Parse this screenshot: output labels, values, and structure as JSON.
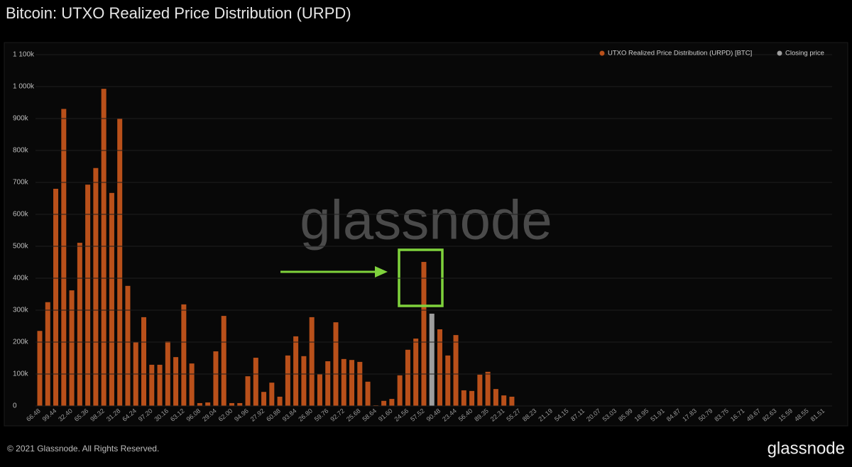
{
  "chart_data": {
    "type": "bar",
    "title": "Bitcoin: UTXO Realized Price Distribution (URPD)",
    "watermark": "glassnode",
    "footer": "© 2021 Glassnode. All Rights Reserved.",
    "logo": "glassnode",
    "grid": true,
    "categories": [
      "66.48",
      null,
      "99.44",
      null,
      "32.40",
      null,
      "65.36",
      null,
      "98.32",
      null,
      "31.28",
      null,
      "64.24",
      null,
      "97.20",
      null,
      "30.16",
      null,
      "63.12",
      null,
      "96.08",
      null,
      "29.04",
      null,
      "62.00",
      null,
      "94.96",
      null,
      "27.92",
      null,
      "60.88",
      null,
      "93.84",
      null,
      "26.80",
      null,
      "59.76",
      null,
      "92.72",
      null,
      "25.68",
      null,
      "58.64",
      null,
      "91.60",
      null,
      "24.56",
      null,
      "57.52",
      null,
      "90.48",
      null,
      "23.44",
      null,
      "56.40",
      null,
      "89.35",
      null,
      "22.31",
      null,
      "55.27",
      null,
      "88.23",
      null,
      "21.19",
      null,
      "54.15",
      null,
      "87.11",
      null,
      "20.07",
      null,
      "53.03",
      null,
      "85.99",
      null,
      "18.95",
      null,
      "51.91",
      null,
      "84.87",
      null,
      "17.83",
      null,
      "50.79",
      null,
      "83.75",
      null,
      "16.71",
      null,
      "49.67",
      null,
      "82.63",
      null,
      "15.59",
      null,
      "48.55",
      null,
      "81.51",
      null
    ],
    "series": [
      {
        "name": "UTXO Realized Price Distribution (URPD) [BTC]",
        "color": "#b9501a",
        "values": [
          235000,
          325000,
          680000,
          930000,
          362000,
          511000,
          693000,
          745000,
          993000,
          667000,
          900000,
          376000,
          200000,
          278000,
          129000,
          129000,
          202000,
          153000,
          318000,
          133000,
          9000,
          11000,
          171000,
          282000,
          9000,
          9000,
          93000,
          151000,
          44000,
          73000,
          29000,
          158000,
          218000,
          156000,
          278000,
          100000,
          140000,
          262000,
          147000,
          144000,
          138000,
          76000,
          2000,
          16000,
          22000,
          96000,
          176000,
          211000,
          451000,
          null,
          240000,
          158000,
          222000,
          49000,
          47000,
          98000,
          107000,
          53000,
          33000,
          29000,
          0,
          0,
          0,
          0,
          0,
          0,
          0,
          0,
          0,
          0,
          0,
          0,
          0,
          0,
          0,
          0,
          0,
          0,
          0,
          0,
          0,
          0,
          0,
          0,
          0,
          0,
          0,
          0,
          0,
          0,
          0,
          0,
          0,
          0,
          0,
          0,
          0,
          0,
          0,
          0
        ]
      },
      {
        "name": "Closing price",
        "color": "#9e9e9e",
        "values": [
          null,
          null,
          null,
          null,
          null,
          null,
          null,
          null,
          null,
          null,
          null,
          null,
          null,
          null,
          null,
          null,
          null,
          null,
          null,
          null,
          null,
          null,
          null,
          null,
          null,
          null,
          null,
          null,
          null,
          null,
          null,
          null,
          null,
          null,
          null,
          null,
          null,
          null,
          null,
          null,
          null,
          null,
          null,
          null,
          null,
          null,
          null,
          null,
          null,
          289000,
          null,
          null,
          null,
          null,
          null,
          null,
          null,
          null,
          null,
          null,
          null,
          null,
          null,
          null,
          null,
          null,
          null,
          null,
          null,
          null,
          null,
          null,
          null,
          null,
          null,
          null,
          null,
          null,
          null,
          null,
          null,
          null,
          null,
          null,
          null,
          null,
          null,
          null,
          null,
          null,
          null,
          null,
          null,
          null,
          null,
          null,
          null,
          null,
          null,
          null
        ]
      }
    ],
    "ylim": [
      0,
      1100000
    ],
    "yticks": [
      0,
      {
        "value": 100000,
        "label": "100k"
      },
      {
        "value": 200000,
        "label": "200k"
      },
      {
        "value": 300000,
        "label": "300k"
      },
      {
        "value": 400000,
        "label": "400k"
      },
      {
        "value": 500000,
        "label": "500k"
      },
      {
        "value": 600000,
        "label": "600k"
      },
      {
        "value": 700000,
        "label": "700k"
      },
      {
        "value": 800000,
        "label": "800k"
      },
      {
        "value": 900000,
        "label": "900k"
      },
      {
        "value": 1000000,
        "label": "1 000k"
      },
      {
        "value": 1100000,
        "label": "1 100k"
      }
    ]
  }
}
